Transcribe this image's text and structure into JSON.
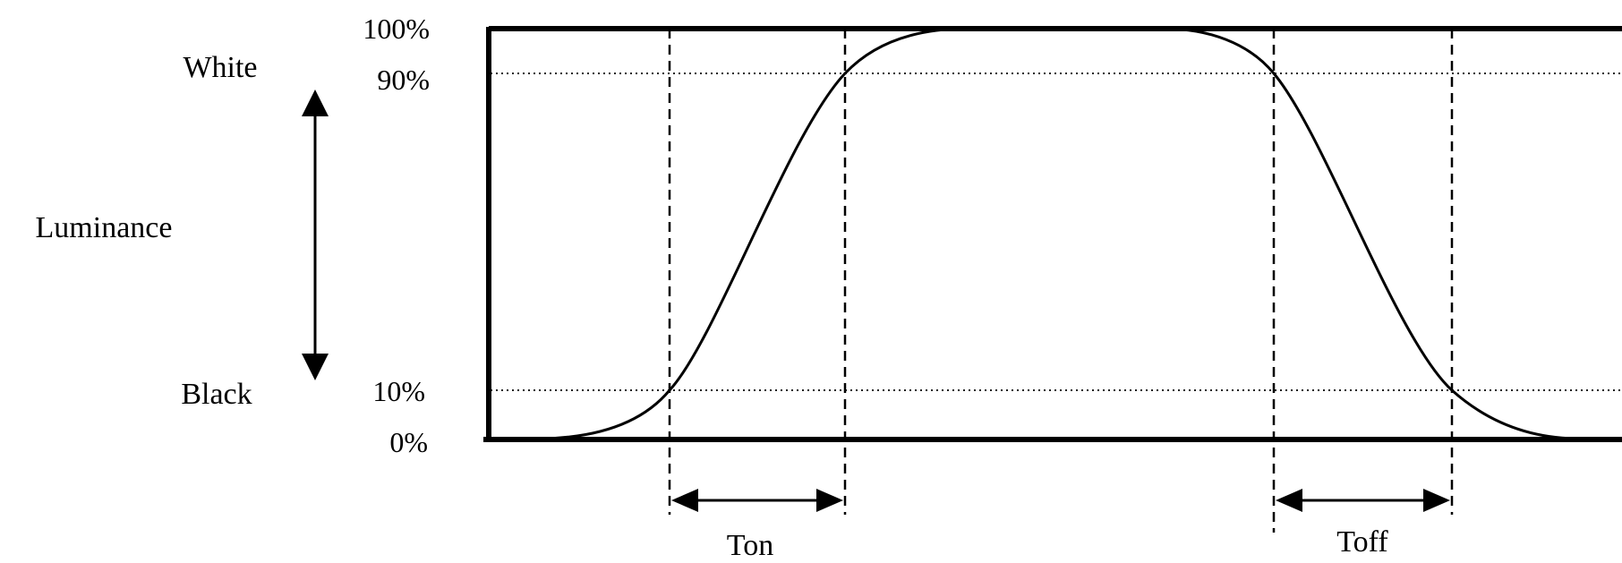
{
  "labels": {
    "white": "White",
    "luminance": "Luminance",
    "black": "Black",
    "ton": "Ton",
    "toff": "Toff"
  },
  "ticks": {
    "p100": "100%",
    "p90": "90%",
    "p10": "10%",
    "p0": "0%"
  },
  "colors": {
    "line": "#000000",
    "background": "#ffffff"
  }
}
